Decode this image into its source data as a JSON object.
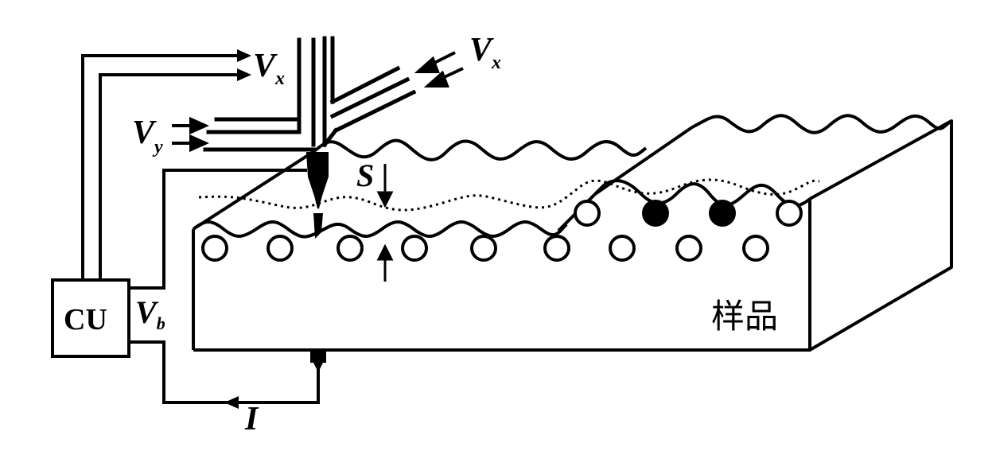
{
  "labels": {
    "vx_top": {
      "main": "V",
      "sub": "x"
    },
    "vx_right": {
      "main": "V",
      "sub": "x"
    },
    "vy": {
      "main": "V",
      "sub": "y"
    },
    "s": "S",
    "cu": "CU",
    "vb": {
      "main": "V",
      "sub": "b"
    },
    "current": "I",
    "sample": "样品"
  },
  "colors": {
    "ink": "#000000",
    "paper": "#ffffff"
  }
}
